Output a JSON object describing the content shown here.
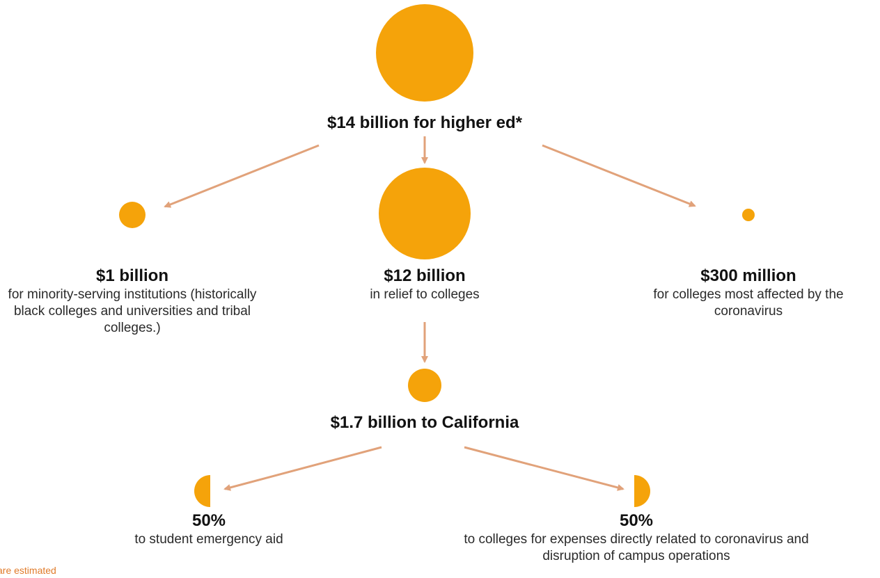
{
  "colors": {
    "node": "#F5A30A",
    "arrow": "#E1A27A",
    "text": "#1E1E1E",
    "footnote": "#E07B2A"
  },
  "root": {
    "label": "$14 billion for higher ed*"
  },
  "branches": [
    {
      "amount": "$1 billion",
      "description": "for minority-serving institutions (historically black colleges and universities and tribal colleges.)"
    },
    {
      "amount": "$12 billion",
      "description": "in relief to colleges"
    },
    {
      "amount": "$300 million",
      "description": "for colleges most affected by the coronavirus"
    }
  ],
  "california": {
    "label": "$1.7 billion to California"
  },
  "splits": [
    {
      "percent": "50%",
      "description": "to student emergency aid"
    },
    {
      "percent": "50%",
      "description": "to colleges for expenses directly related to coronavirus and disruption of campus operations"
    }
  ],
  "footnote": "are estimated"
}
